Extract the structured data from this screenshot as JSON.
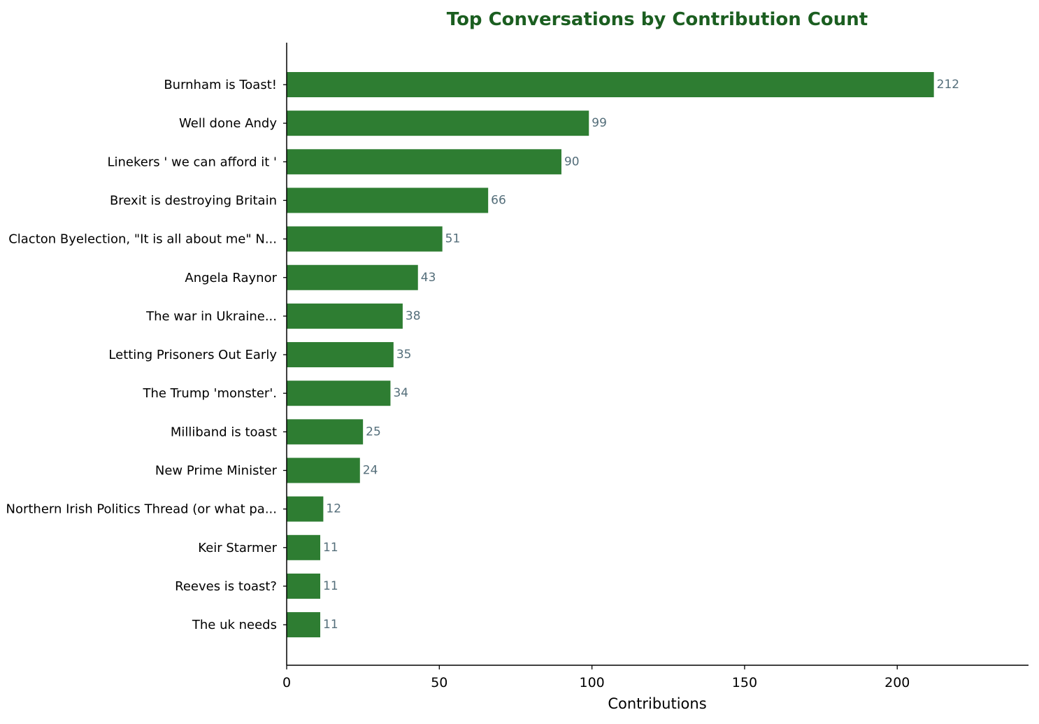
{
  "colors": {
    "bar": "#2e7d32",
    "title": "#1b5e20",
    "value_label": "#546e7a",
    "axis": "#000000"
  },
  "chart_data": {
    "type": "bar",
    "orientation": "horizontal",
    "title": "Top Conversations by Contribution Count",
    "xlabel": "Contributions",
    "ylabel": "",
    "xlim": [
      0,
      243
    ],
    "xticks": [
      0,
      50,
      100,
      150,
      200
    ],
    "xtick_labels": [
      "0",
      "50",
      "100",
      "150",
      "200"
    ],
    "grid": false,
    "categories": [
      "Burnham is Toast!",
      "Well done Andy",
      "Linekers ' we can afford it '",
      "Brexit is destroying Britain",
      "Clacton Byelection, \"It is all about me\" N...",
      "Angela Raynor",
      "The war in Ukraine...",
      "Letting Prisoners Out Early",
      "The Trump 'monster'.",
      "Milliband is toast",
      "New Prime Minister",
      "Northern Irish Politics Thread (or what pa...",
      "Keir Starmer",
      "Reeves is toast?",
      "The uk needs"
    ],
    "values": [
      212,
      99,
      90,
      66,
      51,
      43,
      38,
      35,
      34,
      25,
      24,
      12,
      11,
      11,
      11
    ],
    "value_labels": [
      "212",
      "99",
      "90",
      "66",
      "51",
      "43",
      "38",
      "35",
      "34",
      "25",
      "24",
      "12",
      "11",
      "11",
      "11"
    ]
  }
}
